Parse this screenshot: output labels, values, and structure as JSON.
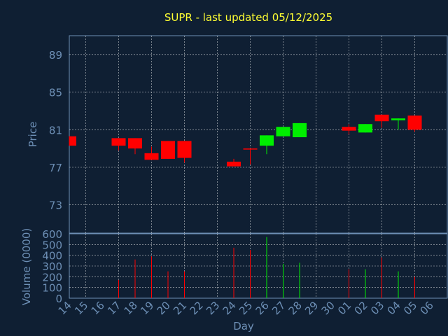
{
  "chart_data": {
    "type": "candlestick",
    "title": "SUPR - last updated 05/12/2025",
    "ylabel": "Price",
    "volume_label": "Volume (0000)",
    "xlabel": "Day",
    "price_ylim": [
      70,
      91
    ],
    "price_ticks": [
      "73",
      "77",
      "81",
      "85",
      "89"
    ],
    "volume_ylim": [
      0,
      600
    ],
    "volume_ticks": [
      "0",
      "100",
      "200",
      "300",
      "400",
      "500",
      "600"
    ],
    "x_tick_labels": [
      "14",
      "15",
      "16",
      "17",
      "18",
      "19",
      "20",
      "21",
      "22",
      "23",
      "24",
      "25",
      "26",
      "27",
      "28",
      "29",
      "30",
      "01",
      "02",
      "03",
      "04",
      "05",
      "06"
    ],
    "grid": true,
    "candles": [
      {
        "day": "14",
        "open": 80.3,
        "close": 79.3,
        "high": 80.3,
        "low": 79.3,
        "volume": 0
      },
      {
        "day": "17",
        "open": 80.1,
        "close": 79.3,
        "high": 80.1,
        "low": 78.8,
        "volume": 170
      },
      {
        "day": "18",
        "open": 80.1,
        "close": 79.0,
        "high": 80.1,
        "low": 78.4,
        "volume": 360
      },
      {
        "day": "19",
        "open": 78.5,
        "close": 77.8,
        "high": 79.2,
        "low": 77.8,
        "volume": 390
      },
      {
        "day": "20",
        "open": 79.8,
        "close": 77.9,
        "high": 79.8,
        "low": 77.9,
        "volume": 250
      },
      {
        "day": "21",
        "open": 79.8,
        "close": 78.0,
        "high": 79.8,
        "low": 77.5,
        "volume": 250
      },
      {
        "day": "24",
        "open": 77.6,
        "close": 77.1,
        "high": 77.9,
        "low": 77.1,
        "volume": 470
      },
      {
        "day": "25",
        "open": 79.0,
        "close": 78.9,
        "high": 79.0,
        "low": 77.3,
        "volume": 450
      },
      {
        "day": "26",
        "open": 79.3,
        "close": 80.4,
        "high": 80.4,
        "low": 78.4,
        "volume": 570
      },
      {
        "day": "27",
        "open": 80.3,
        "close": 81.3,
        "high": 81.3,
        "low": 80.3,
        "volume": 320
      },
      {
        "day": "28",
        "open": 80.2,
        "close": 81.7,
        "high": 81.7,
        "low": 80.2,
        "volume": 330
      },
      {
        "day": "01",
        "open": 81.3,
        "close": 80.9,
        "high": 81.6,
        "low": 80.5,
        "volume": 270
      },
      {
        "day": "02",
        "open": 80.7,
        "close": 81.6,
        "high": 81.6,
        "low": 80.7,
        "volume": 270
      },
      {
        "day": "03",
        "open": 82.6,
        "close": 81.9,
        "high": 82.6,
        "low": 81.2,
        "volume": 380
      },
      {
        "day": "04",
        "open": 82.0,
        "close": 82.2,
        "high": 82.2,
        "low": 81.0,
        "volume": 250
      },
      {
        "day": "05",
        "open": 82.5,
        "close": 81.0,
        "high": 82.5,
        "low": 80.8,
        "volume": 200
      }
    ],
    "colors": {
      "background": "#0f1f33",
      "axis_text": "#6d8fb5",
      "title": "#ffff33",
      "up": "#00ee00",
      "down": "#ff0000",
      "grid": "#ffffff"
    }
  }
}
